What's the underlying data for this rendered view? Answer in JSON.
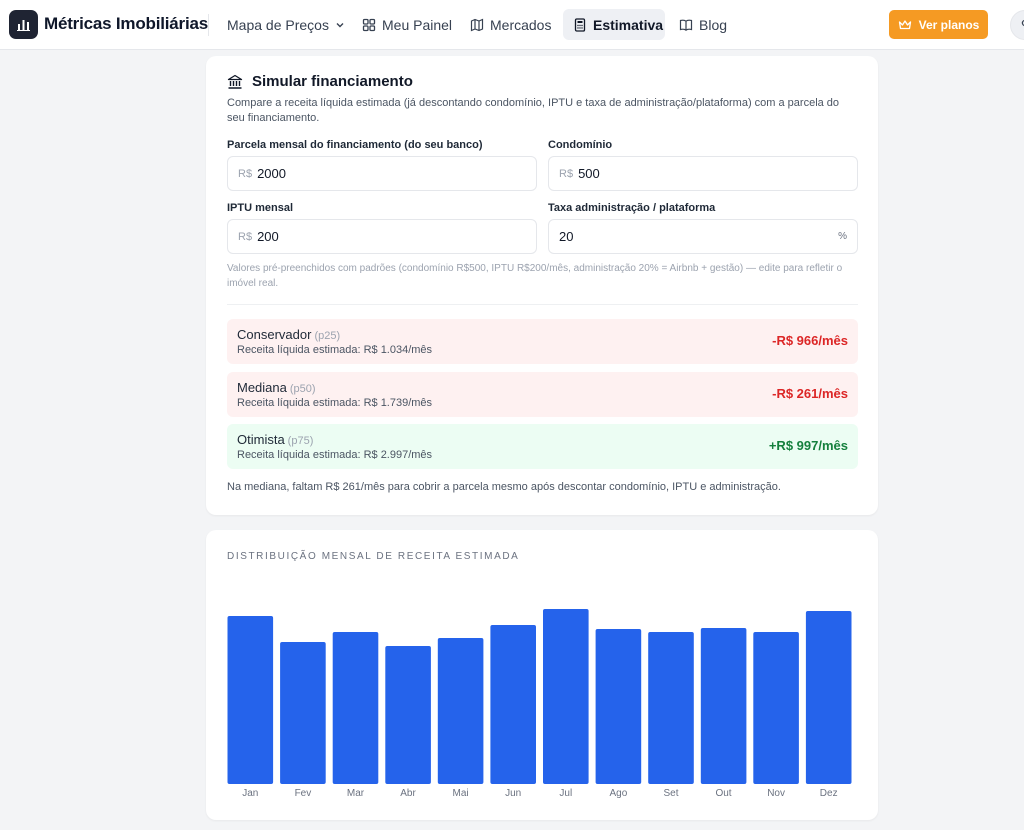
{
  "nav": {
    "brand": "Métricas Imobiliárias",
    "items": [
      {
        "label": "Mapa de Preços",
        "icon": "chevron-down-icon"
      },
      {
        "label": "Meu Painel",
        "icon": "dashboard-icon"
      },
      {
        "label": "Mercados",
        "icon": "map-icon"
      },
      {
        "label": "Estimativa",
        "icon": "calculator-icon",
        "active": true
      },
      {
        "label": "Blog",
        "icon": "book-icon"
      }
    ],
    "cta_label": "Ver planos"
  },
  "financing": {
    "title": "Simular financiamento",
    "description": "Compare a receita líquida estimada (já descontando condomínio, IPTU e taxa de administração/plataforma) com a parcela do seu financiamento.",
    "fields": {
      "parcela": {
        "label": "Parcela mensal do financiamento (do seu banco)",
        "prefix": "R$",
        "value": "2000"
      },
      "condominio": {
        "label": "Condomínio",
        "prefix": "R$",
        "value": "500"
      },
      "iptu": {
        "label": "IPTU mensal",
        "prefix": "R$",
        "value": "200"
      },
      "taxa": {
        "label": "Taxa administração / plataforma",
        "value": "20",
        "suffix": "%"
      }
    },
    "hint": "Valores pré-preenchidos com padrões (condomínio R$500, IPTU R$200/mês, administração 20% = Airbnb + gestão) — edite para refletir o imóvel real.",
    "scenarios": [
      {
        "name": "Conservador",
        "pct": "(p25)",
        "sub": "Receita líquida estimada: R$ 1.034/mês",
        "amount": "-R$ 966/mês",
        "kind": "neg"
      },
      {
        "name": "Mediana",
        "pct": "(p50)",
        "sub": "Receita líquida estimada: R$ 1.739/mês",
        "amount": "-R$ 261/mês",
        "kind": "neg"
      },
      {
        "name": "Otimista",
        "pct": "(p75)",
        "sub": "Receita líquida estimada: R$ 2.997/mês",
        "amount": "+R$ 997/mês",
        "kind": "pos"
      }
    ],
    "summary": "Na mediana, faltam R$ 261/mês para cobrir a parcela mesmo após descontar condomínio, IPTU e administração."
  },
  "colors": {
    "accent": "#f59a23",
    "bar": "#2563eb",
    "negative": "#dc2626",
    "positive": "#15803d"
  },
  "chart_data": {
    "type": "bar",
    "title": "DISTRIBUIÇÃO MENSAL DE RECEITA ESTIMADA",
    "categories": [
      "Jan",
      "Fev",
      "Mar",
      "Abr",
      "Mai",
      "Jun",
      "Jul",
      "Ago",
      "Set",
      "Out",
      "Nov",
      "Dez"
    ],
    "values": [
      168,
      142,
      152,
      138,
      146,
      159,
      175,
      155,
      152,
      156,
      152,
      173
    ],
    "ylim": [
      0,
      180
    ],
    "grid": false,
    "legend": "none",
    "value_note": "relative bar heights; no axis values printed"
  }
}
